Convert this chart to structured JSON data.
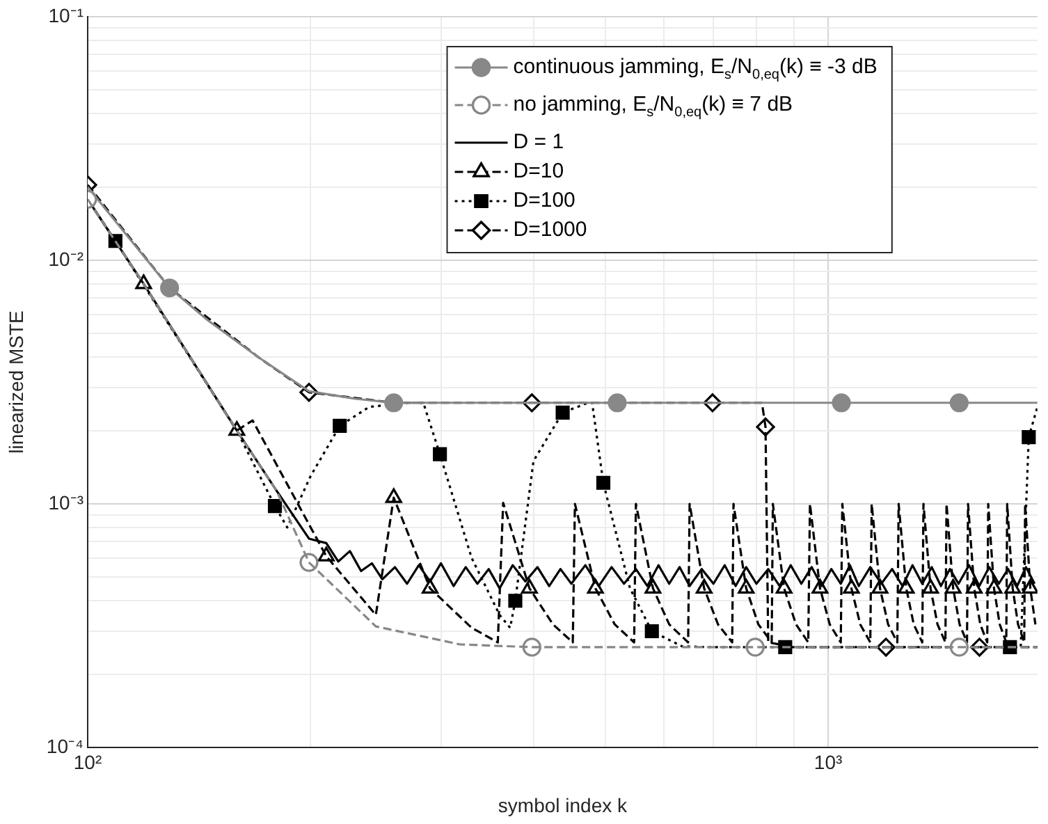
{
  "chart_data": {
    "type": "line",
    "xlabel": "symbol index k",
    "ylabel": "linearized MSTE",
    "log": "xy",
    "grid": true,
    "legend": "top right",
    "xlim": [
      100,
      1917
    ],
    "ylim": [
      0.0001,
      0.1
    ],
    "xticks": [
      {
        "value": 100,
        "label": "10²"
      },
      {
        "value": 200,
        "label": null
      },
      {
        "value": 300,
        "label": null
      },
      {
        "value": 400,
        "label": null
      },
      {
        "value": 500,
        "label": null
      },
      {
        "value": 600,
        "label": null
      },
      {
        "value": 700,
        "label": null
      },
      {
        "value": 800,
        "label": null
      },
      {
        "value": 900,
        "label": null
      },
      {
        "value": 1000,
        "label": "10³"
      }
    ],
    "yticks": [
      {
        "value": 0.0001,
        "label": "10⁻⁴"
      },
      {
        "value": 0.0002,
        "label": null
      },
      {
        "value": 0.0003,
        "label": null
      },
      {
        "value": 0.0004,
        "label": null
      },
      {
        "value": 0.0005,
        "label": null
      },
      {
        "value": 0.0006,
        "label": null
      },
      {
        "value": 0.0007,
        "label": null
      },
      {
        "value": 0.0008,
        "label": null
      },
      {
        "value": 0.0009,
        "label": null
      },
      {
        "value": 0.001,
        "label": "10⁻³"
      },
      {
        "value": 0.002,
        "label": null
      },
      {
        "value": 0.003,
        "label": null
      },
      {
        "value": 0.004,
        "label": null
      },
      {
        "value": 0.005,
        "label": null
      },
      {
        "value": 0.006,
        "label": null
      },
      {
        "value": 0.007,
        "label": null
      },
      {
        "value": 0.008,
        "label": null
      },
      {
        "value": 0.009,
        "label": null
      },
      {
        "value": 0.01,
        "label": "10⁻²"
      },
      {
        "value": 0.02,
        "label": null
      },
      {
        "value": 0.03,
        "label": null
      },
      {
        "value": 0.04,
        "label": null
      },
      {
        "value": 0.05,
        "label": null
      },
      {
        "value": 0.06,
        "label": null
      },
      {
        "value": 0.07,
        "label": null
      },
      {
        "value": 0.08,
        "label": null
      },
      {
        "value": 0.09,
        "label": null
      },
      {
        "value": 0.1,
        "label": "10⁻¹"
      }
    ],
    "series": [
      {
        "name": "continuous jamming, E$_{s}$/N$_{0,eq}$(k) ≡ -3 dB",
        "color": "#888888",
        "line_style": "solid",
        "x": [
          100,
          129,
          145,
          170,
          199,
          230,
          259,
          300,
          400,
          519,
          700,
          1042,
          1503,
          1917
        ],
        "values": [
          0.02,
          0.0077,
          0.0057,
          0.004,
          0.0029,
          0.0027,
          0.0026,
          0.0026,
          0.0026,
          0.0026,
          0.0026,
          0.0026,
          0.0026,
          0.0026
        ]
      },
      {
        "type": "scatter",
        "color": "#888888",
        "marker": "circle",
        "x": [
          129,
          259,
          519,
          1042,
          1503
        ],
        "values": [
          0.0077,
          0.0026,
          0.0026,
          0.0026,
          0.0026
        ]
      },
      {
        "name": "no jamming, E$_{s}$/N$_{0,eq}$(k) ≡ 7 dB",
        "color": "#888888",
        "line_style": "dashed",
        "x": [
          100,
          119,
          159,
          180,
          199,
          245,
          318,
          398,
          797,
          1503,
          1917
        ],
        "values": [
          0.0178,
          0.008,
          0.002,
          0.00113,
          0.000575,
          0.000314,
          0.000265,
          0.000258,
          0.000258,
          0.000258,
          0.000258
        ]
      },
      {
        "type": "scatter",
        "color": "#ffffff",
        "marker": "circle",
        "x": [
          100,
          199,
          398,
          797,
          1503
        ],
        "values": [
          0.0178,
          0.000575,
          0.000258,
          0.000258,
          0.000258
        ]
      },
      {
        "name": "D = 1",
        "color": "#000000",
        "line_style": "solid",
        "x": [
          100,
          119,
          159,
          180,
          199,
          210,
          218,
          226,
          234,
          242,
          250,
          260,
          270,
          280,
          290,
          300,
          312,
          324,
          336,
          348,
          360,
          375,
          390,
          405,
          420,
          435,
          450,
          470,
          490,
          510,
          530,
          550,
          570,
          590,
          610,
          630,
          650,
          675,
          700,
          725,
          750,
          775,
          800,
          830,
          860,
          890,
          920,
          950,
          980,
          1010,
          1040,
          1070,
          1100,
          1140,
          1180,
          1220,
          1260,
          1300,
          1340,
          1380,
          1420,
          1460,
          1500,
          1550,
          1600,
          1650,
          1700,
          1750,
          1800,
          1850,
          1900
        ],
        "values": [
          0.0178,
          0.008,
          0.002,
          0.00113,
          0.00072,
          0.00069,
          0.00058,
          0.00064,
          0.00053,
          0.00057,
          0.00049,
          0.00055,
          0.00047,
          0.00056,
          0.00048,
          0.00057,
          0.00046,
          0.00055,
          0.00047,
          0.00054,
          0.00045,
          0.00056,
          0.00048,
          0.00055,
          0.00046,
          0.00054,
          0.00047,
          0.00056,
          0.00046,
          0.00055,
          0.00047,
          0.00054,
          0.00046,
          0.00056,
          0.00047,
          0.00055,
          0.00046,
          0.00054,
          0.00047,
          0.00056,
          0.00046,
          0.00055,
          0.00047,
          0.00054,
          0.00046,
          0.00056,
          0.00047,
          0.00055,
          0.00046,
          0.00054,
          0.00047,
          0.00056,
          0.00046,
          0.00055,
          0.00047,
          0.00054,
          0.00046,
          0.00056,
          0.00047,
          0.00055,
          0.00046,
          0.00054,
          0.00047,
          0.00056,
          0.00046,
          0.00055,
          0.00047,
          0.00054,
          0.00046,
          0.00055,
          0.00047
        ]
      },
      {
        "name": "D=10",
        "color": "#000000",
        "line_style": "dashed",
        "x": [
          100,
          119,
          159,
          167,
          210,
          245,
          259,
          290,
          330,
          358,
          364,
          395,
          425,
          452,
          455,
          485,
          515,
          547,
          550,
          580,
          610,
          647,
          650,
          680,
          710,
          742,
          745,
          775,
          805,
          839,
          842,
          872,
          905,
          940,
          945,
          975,
          1005,
          1040,
          1045,
          1075,
          1105,
          1140,
          1145,
          1175,
          1205,
          1240,
          1245,
          1275,
          1305,
          1340,
          1345,
          1375,
          1405,
          1440,
          1445,
          1475,
          1505,
          1540,
          1545,
          1575,
          1605,
          1640,
          1645,
          1675,
          1705,
          1740,
          1745,
          1775,
          1805,
          1840,
          1845,
          1875,
          1905
        ],
        "values": [
          0.0178,
          0.008,
          0.002,
          0.0022,
          0.00061,
          0.00035,
          0.00106,
          0.00045,
          0.00031,
          0.00027,
          0.00101,
          0.00045,
          0.00032,
          0.00027,
          0.001,
          0.00045,
          0.00032,
          0.00027,
          0.001,
          0.00045,
          0.00032,
          0.00027,
          0.001,
          0.00045,
          0.00032,
          0.00027,
          0.001,
          0.00045,
          0.00032,
          0.00027,
          0.001,
          0.00045,
          0.00032,
          0.00027,
          0.001,
          0.00045,
          0.00032,
          0.00027,
          0.001,
          0.00045,
          0.00032,
          0.00027,
          0.001,
          0.00045,
          0.00032,
          0.00027,
          0.001,
          0.00045,
          0.00032,
          0.00027,
          0.001,
          0.00045,
          0.00032,
          0.00027,
          0.001,
          0.00045,
          0.00032,
          0.00027,
          0.001,
          0.00045,
          0.00032,
          0.00027,
          0.001,
          0.00045,
          0.00032,
          0.00027,
          0.001,
          0.00045,
          0.00032,
          0.00027,
          0.001,
          0.00045,
          0.00032
        ]
      },
      {
        "type": "scatter",
        "color": "#ffffff",
        "marker": "triangle",
        "x": [
          119,
          159,
          210,
          259,
          290,
          395,
          485,
          580,
          680,
          775,
          872,
          975,
          1075,
          1175,
          1275,
          1375,
          1475,
          1575,
          1675,
          1775,
          1875
        ],
        "values": [
          0.008,
          0.002,
          0.00061,
          0.00106,
          0.00045,
          0.00045,
          0.00045,
          0.00045,
          0.00045,
          0.00045,
          0.00045,
          0.00045,
          0.00045,
          0.00045,
          0.00045,
          0.00045,
          0.00045,
          0.00045,
          0.00045,
          0.00045,
          0.00045
        ]
      },
      {
        "name": "D=100",
        "color": "#000000",
        "line_style": "dotted",
        "x": [
          100,
          109,
          159,
          179,
          186,
          200,
          219,
          240,
          270,
          284,
          299,
          330,
          360,
          372,
          378,
          400,
          438,
          474,
          480,
          497,
          540,
          578,
          635,
          700,
          1000,
          1760,
          1820,
          1866,
          1917
        ],
        "values": [
          0.0178,
          0.012,
          0.002,
          0.00098,
          0.0008,
          0.0013,
          0.00209,
          0.0025,
          0.0026,
          0.0026,
          0.0016,
          0.0006,
          0.00035,
          0.00031,
          0.0004,
          0.0015,
          0.00237,
          0.0026,
          0.0026,
          0.00122,
          0.00045,
          0.0003,
          0.00026,
          0.000258,
          0.000258,
          0.000258,
          0.000258,
          0.00188,
          0.0025
        ]
      },
      {
        "type": "scatter",
        "color": "#000000",
        "marker": "square",
        "x": [
          109,
          179,
          219,
          299,
          378,
          438,
          497,
          578,
          875,
          1760,
          1866
        ],
        "values": [
          0.012,
          0.00098,
          0.00209,
          0.0016,
          0.0004,
          0.00237,
          0.00122,
          0.0003,
          0.000258,
          0.000258,
          0.00188
        ]
      },
      {
        "name": "D=1000",
        "color": "#000000",
        "line_style": "dashed",
        "x": [
          100,
          129,
          170,
          199,
          259,
          814,
          823,
          830,
          900,
          1917
        ],
        "values": [
          0.0204,
          0.0077,
          0.004,
          0.00287,
          0.0026,
          0.0026,
          0.00207,
          0.00027,
          0.000258,
          0.000258
        ]
      },
      {
        "type": "scatter",
        "color": "#ffffff",
        "marker": "diamond",
        "x": [
          100,
          199,
          398,
          698,
          823,
          1197,
          1601
        ],
        "values": [
          0.0204,
          0.00287,
          0.0026,
          0.0026,
          0.00207,
          0.000258,
          0.000258
        ]
      }
    ]
  }
}
